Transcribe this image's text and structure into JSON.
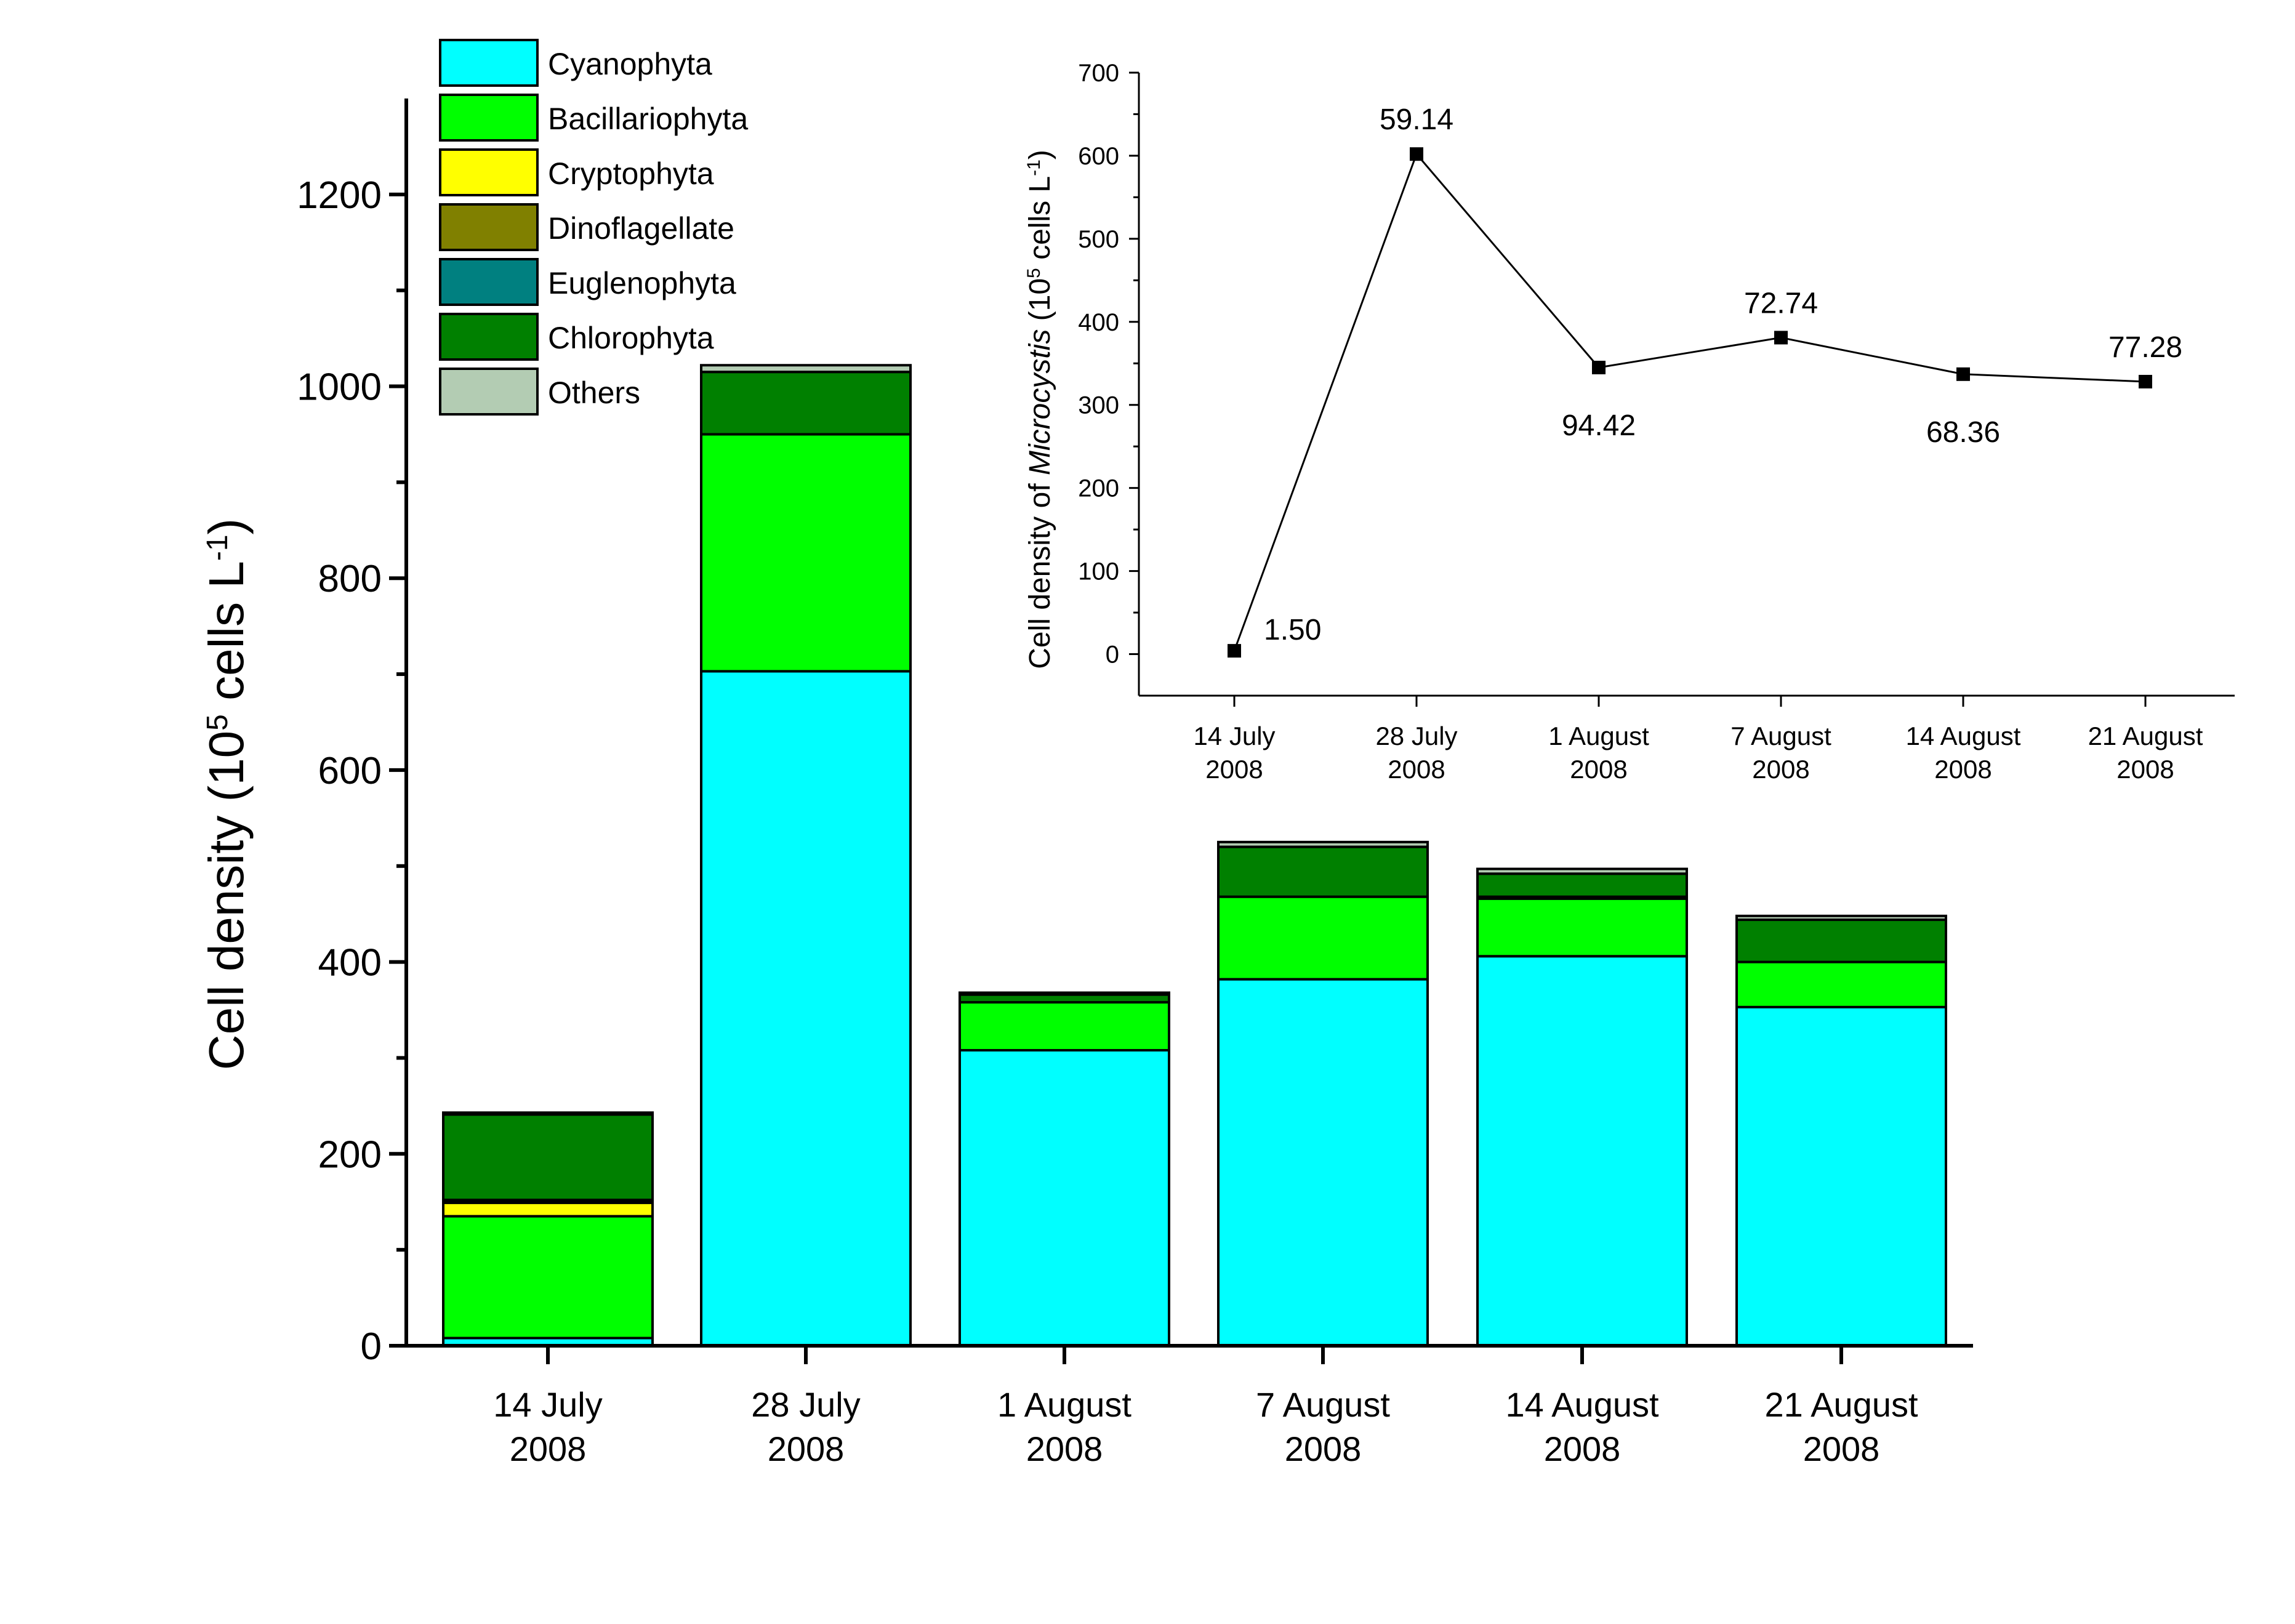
{
  "chart_data": [
    {
      "type": "bar",
      "stacked": true,
      "ylabel_main": "Cell density (10",
      "ylabel_sup1": "5",
      "ylabel_mid": " cells L",
      "ylabel_sup2": "-1",
      "ylabel_end": ")",
      "ylim": [
        0,
        1300
      ],
      "yticks": [
        0,
        200,
        400,
        600,
        800,
        1000,
        1200
      ],
      "legend_position": "top-left",
      "categories": [
        [
          "14 July",
          "2008"
        ],
        [
          "28 July",
          "2008"
        ],
        [
          "1 August",
          "2008"
        ],
        [
          "7 August",
          "2008"
        ],
        [
          "14 August",
          "2008"
        ],
        [
          "21 August",
          "2008"
        ]
      ],
      "series": [
        {
          "name": "Cyanophyta",
          "color": "#00FFFF",
          "values": [
            8,
            703,
            308,
            382,
            406,
            353
          ]
        },
        {
          "name": "Bacillariophyta",
          "color": "#00FF00",
          "values": [
            127,
            247,
            50,
            86,
            60,
            47
          ]
        },
        {
          "name": "Cryptophyta",
          "color": "#FFFF00",
          "values": [
            14,
            0,
            0,
            0,
            0,
            0
          ]
        },
        {
          "name": "Dinoflagellate",
          "color": "#808000",
          "values": [
            2,
            0,
            0,
            0,
            0,
            0
          ]
        },
        {
          "name": "Euglenophyta",
          "color": "#008080",
          "values": [
            1,
            0,
            0,
            0,
            2,
            0
          ]
        },
        {
          "name": "Chlorophyta",
          "color": "#008000",
          "values": [
            89,
            65,
            8,
            52,
            24,
            44
          ]
        },
        {
          "name": "Others",
          "color": "#B3CCB3",
          "values": [
            2,
            7,
            2,
            5,
            5,
            4
          ]
        }
      ]
    },
    {
      "type": "line",
      "ylabel_pre": "Cell density of ",
      "ylabel_italic": "Microcystis",
      "ylabel_mid": " (10",
      "ylabel_sup1": "5",
      "ylabel_mid2": " cells L",
      "ylabel_sup2": "-1",
      "ylabel_end": ")",
      "ylim": [
        -50,
        700
      ],
      "yticks": [
        0,
        100,
        200,
        300,
        400,
        500,
        600,
        700
      ],
      "categories": [
        [
          "14 July",
          "2008"
        ],
        [
          "28 July",
          "2008"
        ],
        [
          "1 August",
          "2008"
        ],
        [
          "7 August",
          "2008"
        ],
        [
          "14 August",
          "2008"
        ],
        [
          "21 August",
          "2008"
        ]
      ],
      "values": [
        4,
        602,
        345,
        381,
        337,
        328
      ],
      "data_labels": [
        "1.50",
        "59.14",
        "94.42",
        "72.74",
        "68.36",
        "77.28"
      ],
      "label_placement": [
        "right",
        "above",
        "below",
        "above",
        "below",
        "above"
      ]
    }
  ]
}
